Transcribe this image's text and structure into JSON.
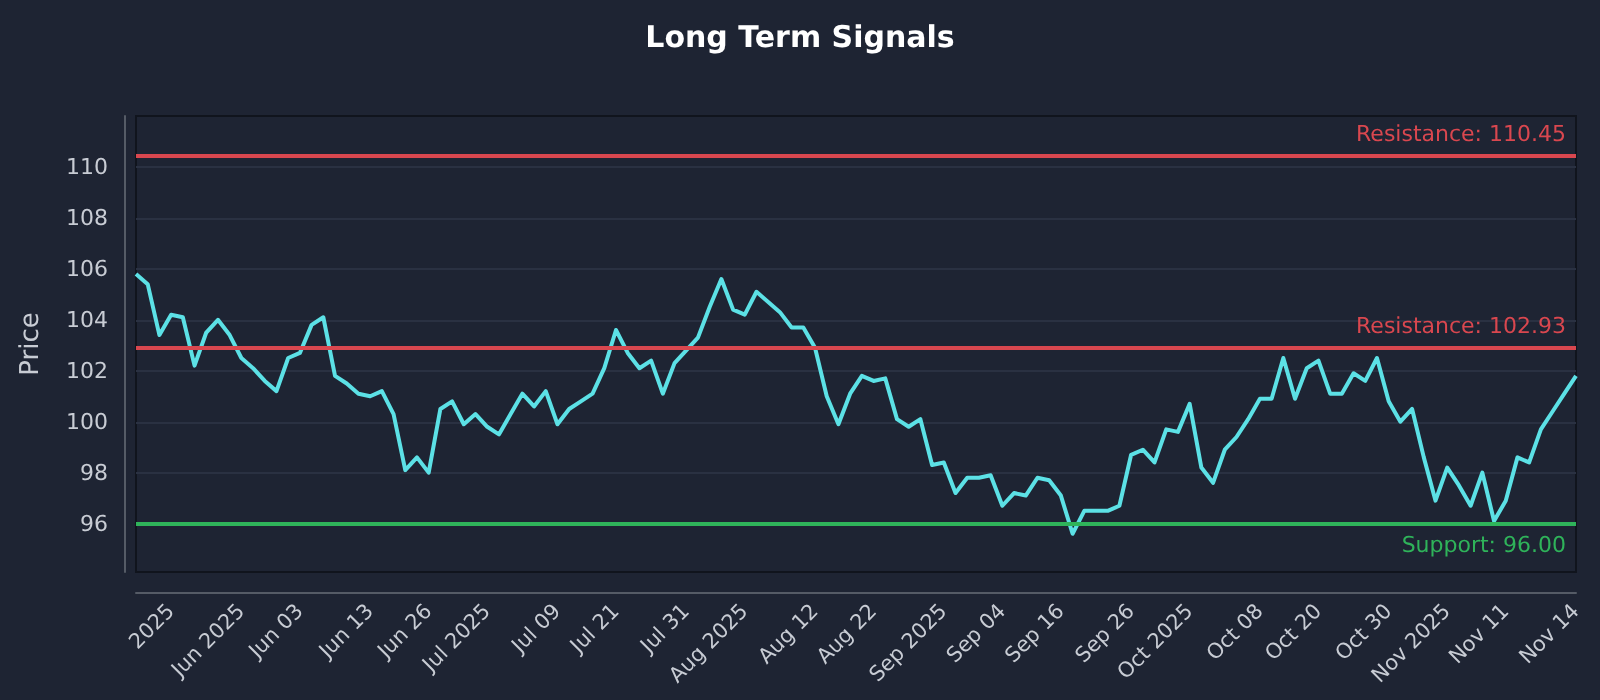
{
  "chart_data": {
    "type": "line",
    "title": "Long Term Signals",
    "ylabel": "Price",
    "categories": [
      null,
      null,
      null,
      "2025",
      null,
      null,
      null,
      null,
      null,
      "Jun 2025",
      null,
      null,
      null,
      null,
      "Jun 03",
      null,
      null,
      null,
      null,
      null,
      "Jun 13",
      null,
      null,
      null,
      null,
      "Jun 26",
      null,
      null,
      null,
      null,
      "Jul 2025",
      null,
      null,
      null,
      null,
      null,
      "Jul 09",
      null,
      null,
      null,
      null,
      "Jul 21",
      null,
      null,
      null,
      null,
      null,
      "Jul 31",
      null,
      null,
      null,
      null,
      "Aug 2025",
      null,
      null,
      null,
      null,
      null,
      "Aug 12",
      null,
      null,
      null,
      null,
      "Aug 22",
      null,
      null,
      null,
      null,
      null,
      "Sep 2025",
      null,
      null,
      null,
      null,
      "Sep 04",
      null,
      null,
      null,
      null,
      "Sep 16",
      null,
      null,
      null,
      null,
      null,
      "Sep 26",
      null,
      null,
      null,
      null,
      "Oct 2025",
      null,
      null,
      null,
      null,
      null,
      "Oct 08",
      null,
      null,
      null,
      null,
      "Oct 20",
      null,
      null,
      null,
      null,
      null,
      "Oct 30",
      null,
      null,
      null,
      null,
      "Nov 2025",
      null,
      null,
      null,
      null,
      "Nov 11",
      null,
      null,
      null,
      null,
      null,
      "Nov 14"
    ],
    "series": [
      {
        "color": "#5ce1e6",
        "values": [
          105.8,
          105.4,
          103.4,
          104.2,
          104.1,
          102.2,
          103.5,
          104.0,
          103.4,
          102.5,
          102.1,
          101.6,
          101.2,
          102.5,
          102.7,
          103.8,
          104.1,
          101.8,
          101.5,
          101.1,
          101.0,
          101.2,
          100.3,
          98.1,
          98.6,
          98.0,
          100.5,
          100.8,
          99.9,
          100.3,
          99.8,
          99.5,
          100.3,
          101.1,
          100.6,
          101.2,
          99.9,
          100.5,
          100.8,
          101.1,
          102.1,
          103.6,
          102.7,
          102.1,
          102.4,
          101.1,
          102.3,
          102.8,
          103.3,
          104.5,
          105.6,
          104.4,
          104.2,
          105.1,
          104.7,
          104.3,
          103.7,
          103.7,
          102.9,
          101.0,
          99.9,
          101.1,
          101.8,
          101.6,
          101.7,
          100.1,
          99.8,
          100.1,
          98.3,
          98.4,
          97.2,
          97.8,
          97.8,
          97.9,
          96.7,
          97.2,
          97.1,
          97.8,
          97.7,
          97.1,
          95.6,
          96.5,
          96.5,
          96.5,
          96.7,
          98.7,
          98.9,
          98.4,
          99.7,
          99.6,
          100.7,
          98.2,
          97.6,
          98.9,
          99.4,
          100.1,
          100.9,
          100.9,
          102.5,
          100.9,
          102.1,
          102.4,
          101.1,
          101.1,
          101.9,
          101.6,
          102.5,
          100.8,
          100.0,
          100.5,
          98.6,
          96.9,
          98.2,
          97.5,
          96.7,
          98.0,
          96.1,
          96.9,
          98.6,
          98.4,
          99.7,
          100.4,
          101.1,
          101.8
        ]
      }
    ],
    "ylim": [
      94.1,
      112.0
    ],
    "yticks": [
      96,
      98,
      100,
      102,
      104,
      106,
      108,
      110
    ],
    "ref_lines": [
      {
        "axis": "y",
        "value": 110.45,
        "label": "Resistance: 110.45",
        "color": "#d9474f"
      },
      {
        "axis": "y",
        "value": 102.93,
        "label": "Resistance: 102.93",
        "color": "#d9474f"
      },
      {
        "axis": "y",
        "value": 96.0,
        "label": "Support: 96.00",
        "color": "#2fb35a"
      }
    ],
    "grid": "y",
    "marker": "none",
    "line_style": "solid"
  }
}
